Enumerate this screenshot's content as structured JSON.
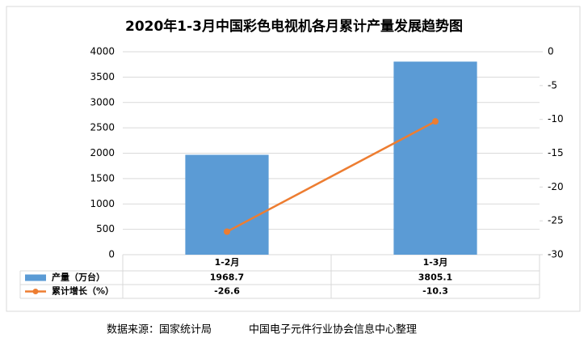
{
  "chart_data": {
    "type": "bar_line",
    "title": "2020年1-3月中国彩色电视机各月累计产量发展趋势图",
    "categories": [
      "1-2月",
      "1-3月"
    ],
    "series": [
      {
        "name": "产量（万台）",
        "type": "bar",
        "color": "#5b9bd5",
        "values": [
          1968.7,
          3805.1
        ]
      },
      {
        "name": "累计增长（%）",
        "type": "line",
        "color": "#ed7d31",
        "axis": "y2",
        "values": [
          -26.6,
          -10.3
        ]
      }
    ],
    "ylim": [
      0,
      4000
    ],
    "yticks": [
      0,
      500,
      1000,
      1500,
      2000,
      2500,
      3000,
      3500,
      4000
    ],
    "y2lim": [
      -30,
      0
    ],
    "y2ticks": [
      0,
      -5,
      -10,
      -15,
      -20,
      -25,
      -30
    ],
    "grid": true,
    "footer": [
      "数据来源：国家统计局",
      "中国电子元件行业协会信息中心整理"
    ]
  }
}
